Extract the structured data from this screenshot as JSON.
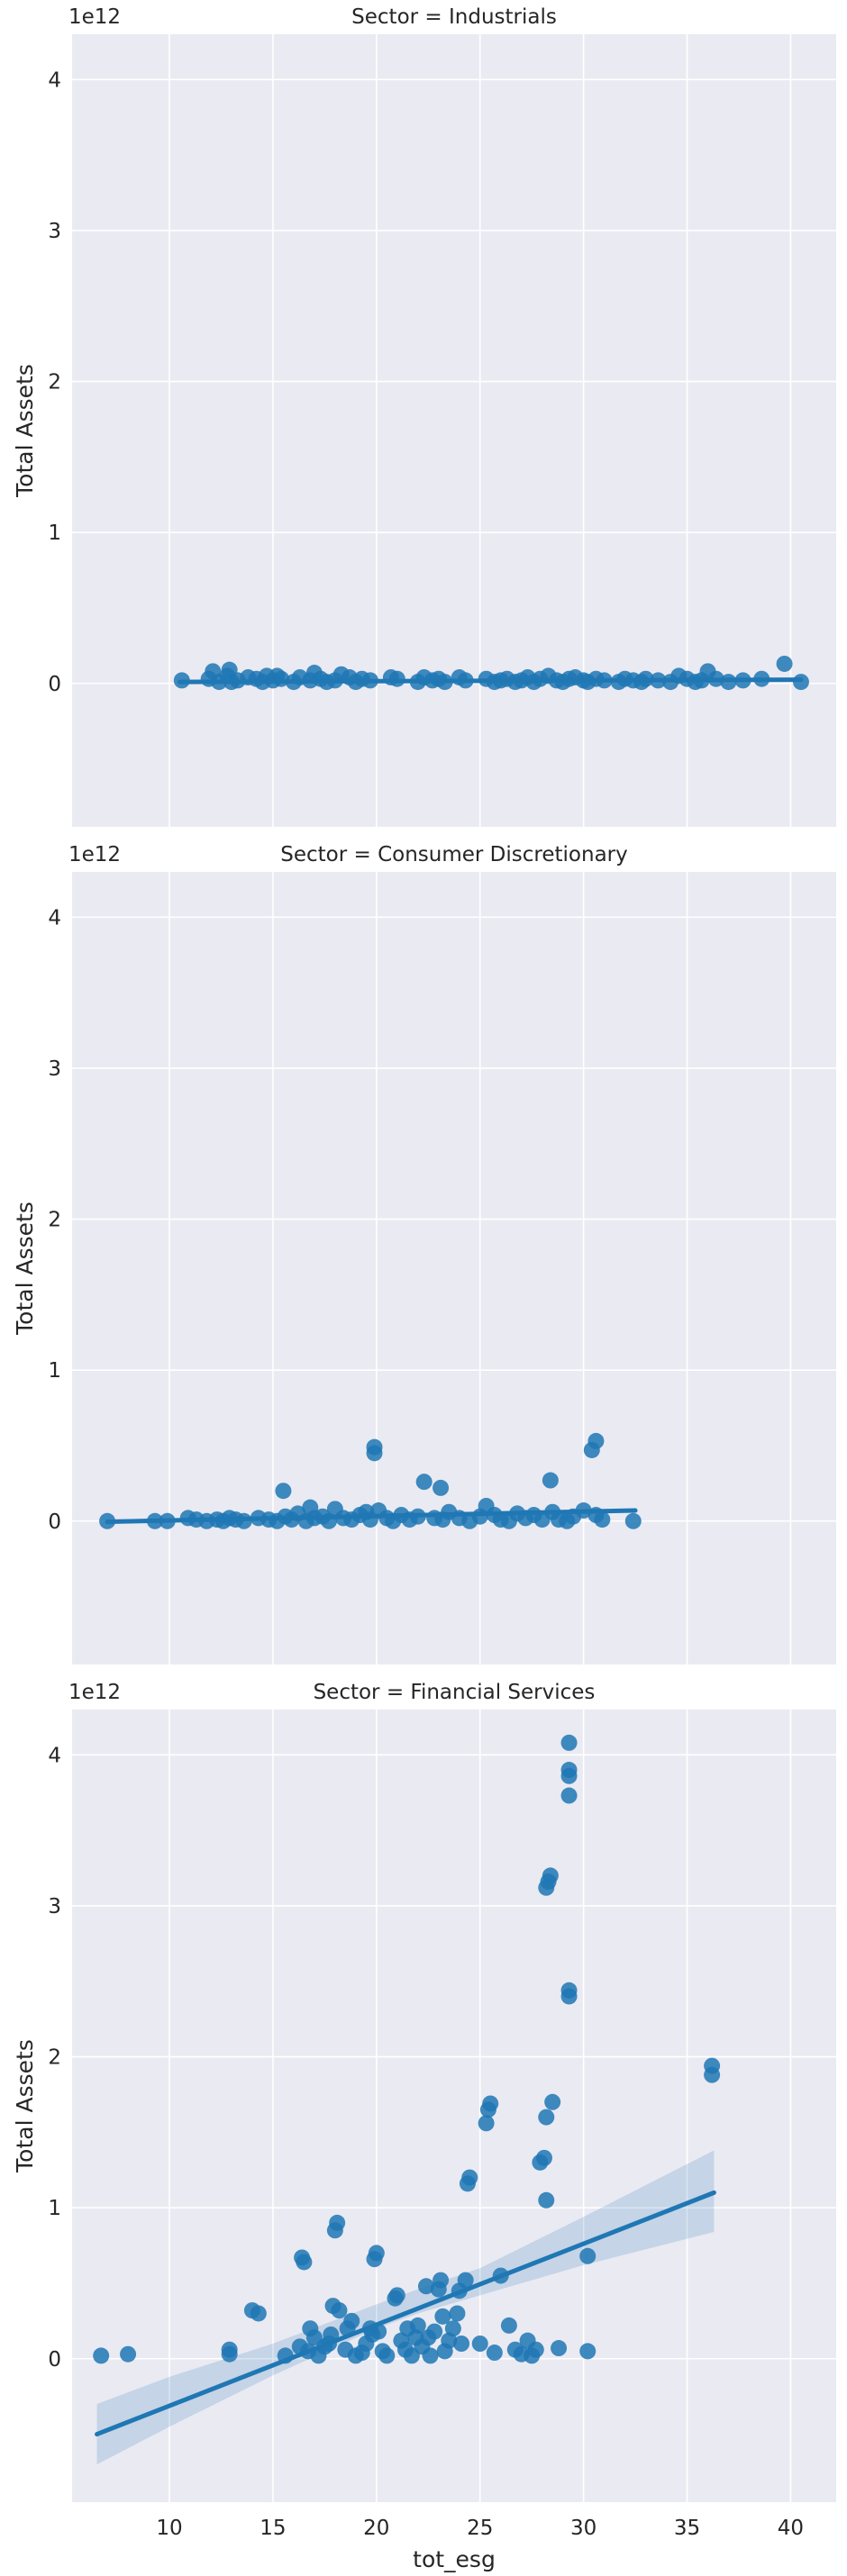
{
  "chart_data": [
    {
      "type": "scatter",
      "title": "Sector = Industrials",
      "xlabel": "",
      "ylabel": "Total Assets",
      "offset_label": "1e12",
      "xlim": [
        5.3,
        42.2
      ],
      "ylim": [
        -0.95,
        4.3
      ],
      "xticks": [
        10,
        15,
        20,
        25,
        30,
        35,
        40
      ],
      "yticks": [
        0,
        1,
        2,
        3,
        4
      ],
      "xtick_labels_shown": false,
      "grid": true,
      "fit_line": {
        "x": [
          10.5,
          40.5
        ],
        "y": [
          0.01,
          0.025
        ]
      },
      "confidence_band": null,
      "x": [
        10.6,
        11.9,
        12.1,
        12.4,
        12.8,
        12.9,
        13.0,
        13.3,
        13.8,
        14.2,
        14.5,
        14.7,
        15.0,
        15.2,
        15.4,
        16.0,
        16.3,
        16.8,
        17.0,
        17.3,
        17.6,
        18.0,
        18.3,
        18.7,
        19.0,
        19.3,
        19.7,
        20.7,
        21.0,
        22.0,
        22.3,
        22.7,
        23.0,
        23.3,
        24.0,
        24.3,
        25.3,
        25.7,
        26.0,
        26.3,
        26.7,
        27.0,
        27.3,
        27.6,
        27.9,
        28.3,
        28.7,
        29.0,
        29.3,
        29.6,
        30.0,
        30.2,
        30.6,
        31.0,
        31.7,
        32.0,
        32.4,
        32.8,
        33.0,
        33.6,
        34.2,
        34.6,
        35.0,
        35.4,
        35.7,
        36.0,
        36.4,
        37.0,
        37.7,
        38.6,
        39.7,
        40.5
      ],
      "y": [
        0.02,
        0.03,
        0.08,
        0.01,
        0.05,
        0.09,
        0.01,
        0.02,
        0.04,
        0.03,
        0.01,
        0.05,
        0.02,
        0.05,
        0.03,
        0.01,
        0.04,
        0.02,
        0.07,
        0.03,
        0.01,
        0.02,
        0.06,
        0.04,
        0.01,
        0.03,
        0.02,
        0.04,
        0.03,
        0.01,
        0.04,
        0.02,
        0.03,
        0.01,
        0.04,
        0.02,
        0.03,
        0.01,
        0.02,
        0.03,
        0.01,
        0.02,
        0.04,
        0.01,
        0.03,
        0.05,
        0.02,
        0.01,
        0.03,
        0.04,
        0.02,
        0.01,
        0.03,
        0.02,
        0.01,
        0.03,
        0.02,
        0.01,
        0.03,
        0.02,
        0.01,
        0.05,
        0.03,
        0.01,
        0.02,
        0.08,
        0.03,
        0.01,
        0.02,
        0.03,
        0.13,
        0.01
      ]
    },
    {
      "type": "scatter",
      "title": "Sector = Consumer Discretionary",
      "xlabel": "",
      "ylabel": "Total Assets",
      "offset_label": "1e12",
      "xlim": [
        5.3,
        42.2
      ],
      "ylim": [
        -0.95,
        4.3
      ],
      "xticks": [
        10,
        15,
        20,
        25,
        30,
        35,
        40
      ],
      "yticks": [
        0,
        1,
        2,
        3,
        4
      ],
      "xtick_labels_shown": false,
      "grid": true,
      "fit_line": {
        "x": [
          7.0,
          32.5
        ],
        "y": [
          -0.005,
          0.07
        ]
      },
      "confidence_band": null,
      "x": [
        7.0,
        9.3,
        9.9,
        10.9,
        11.3,
        11.8,
        12.3,
        12.6,
        12.9,
        13.2,
        13.6,
        14.3,
        14.8,
        15.2,
        15.5,
        15.6,
        15.9,
        16.2,
        16.6,
        16.8,
        17.0,
        17.4,
        17.7,
        18.0,
        18.4,
        18.8,
        19.2,
        19.5,
        19.9,
        19.9,
        19.7,
        20.1,
        20.5,
        20.8,
        21.2,
        21.6,
        22.0,
        22.3,
        22.8,
        23.1,
        23.2,
        23.5,
        24.0,
        24.5,
        25.0,
        25.3,
        25.7,
        26.0,
        26.4,
        26.8,
        27.2,
        27.6,
        28.0,
        28.4,
        28.5,
        28.8,
        29.2,
        29.5,
        30.0,
        30.4,
        30.6,
        30.6,
        30.9,
        32.4
      ],
      "y": [
        0.0,
        0.0,
        0.0,
        0.02,
        0.01,
        0.0,
        0.01,
        0.0,
        0.02,
        0.01,
        0.0,
        0.02,
        0.01,
        0.0,
        0.2,
        0.03,
        0.01,
        0.05,
        0.0,
        0.09,
        0.02,
        0.03,
        0.0,
        0.08,
        0.02,
        0.01,
        0.04,
        0.06,
        0.45,
        0.49,
        0.01,
        0.07,
        0.02,
        0.0,
        0.04,
        0.01,
        0.03,
        0.26,
        0.02,
        0.22,
        0.01,
        0.06,
        0.02,
        0.0,
        0.03,
        0.1,
        0.04,
        0.01,
        0.0,
        0.05,
        0.02,
        0.04,
        0.01,
        0.27,
        0.06,
        0.01,
        0.0,
        0.03,
        0.07,
        0.47,
        0.53,
        0.04,
        0.01,
        0.0
      ]
    },
    {
      "type": "scatter",
      "title": "Sector = Financial Services",
      "xlabel": "tot_esg",
      "ylabel": "Total Assets",
      "offset_label": "1e12",
      "xlim": [
        5.3,
        42.2
      ],
      "ylim": [
        -0.95,
        4.3
      ],
      "xticks": [
        10,
        15,
        20,
        25,
        30,
        35,
        40
      ],
      "yticks": [
        0,
        1,
        2,
        3,
        4
      ],
      "xtick_labels_shown": true,
      "grid": true,
      "fit_line": {
        "x": [
          6.5,
          36.3
        ],
        "y": [
          -0.5,
          1.1
        ]
      },
      "confidence_band": {
        "x": [
          6.5,
          10,
          15,
          20,
          22,
          25,
          30,
          36.3
        ],
        "lower": [
          -0.7,
          -0.45,
          -0.11,
          0.2,
          0.3,
          0.42,
          0.62,
          0.84
        ],
        "upper": [
          -0.3,
          -0.12,
          0.1,
          0.36,
          0.46,
          0.6,
          0.94,
          1.38
        ]
      },
      "x": [
        6.7,
        8.0,
        12.9,
        12.9,
        14.0,
        14.3,
        15.6,
        16.3,
        16.4,
        16.5,
        16.7,
        16.8,
        17.0,
        17.2,
        17.5,
        17.7,
        17.8,
        17.9,
        18.0,
        18.1,
        18.2,
        18.5,
        18.6,
        18.8,
        19.0,
        19.3,
        19.5,
        19.7,
        19.8,
        19.9,
        20.0,
        20.1,
        20.3,
        20.5,
        20.9,
        21.0,
        21.2,
        21.4,
        21.5,
        21.7,
        21.9,
        22.0,
        22.2,
        22.4,
        22.5,
        22.6,
        22.8,
        23.0,
        23.1,
        23.2,
        23.3,
        23.5,
        23.7,
        23.9,
        24.0,
        24.1,
        24.3,
        24.4,
        24.5,
        25.0,
        25.3,
        25.4,
        25.5,
        25.7,
        26.0,
        26.4,
        26.7,
        27.0,
        27.3,
        27.5,
        27.7,
        27.9,
        28.1,
        28.2,
        28.2,
        28.2,
        28.3,
        28.4,
        28.5,
        28.8,
        29.3,
        29.3,
        29.3,
        29.3,
        29.3,
        29.3,
        30.2,
        30.2,
        36.2,
        36.2
      ],
      "y": [
        0.02,
        0.03,
        0.03,
        0.06,
        0.32,
        0.3,
        0.02,
        0.08,
        0.67,
        0.64,
        0.05,
        0.2,
        0.14,
        0.02,
        0.08,
        0.1,
        0.16,
        0.35,
        0.85,
        0.9,
        0.32,
        0.06,
        0.2,
        0.25,
        0.02,
        0.04,
        0.1,
        0.2,
        0.16,
        0.66,
        0.7,
        0.18,
        0.05,
        0.02,
        0.4,
        0.42,
        0.12,
        0.06,
        0.2,
        0.02,
        0.14,
        0.22,
        0.08,
        0.48,
        0.14,
        0.02,
        0.18,
        0.46,
        0.52,
        0.28,
        0.05,
        0.12,
        0.2,
        0.3,
        0.45,
        0.1,
        0.52,
        1.16,
        1.2,
        0.1,
        1.56,
        1.65,
        1.69,
        0.04,
        0.55,
        0.22,
        0.06,
        0.03,
        0.12,
        0.02,
        0.06,
        1.3,
        1.33,
        1.05,
        1.6,
        3.12,
        3.16,
        3.2,
        1.7,
        0.07,
        4.08,
        3.9,
        3.86,
        3.73,
        2.44,
        2.4,
        0.05,
        0.68,
        1.88,
        1.94
      ]
    }
  ],
  "style": {
    "axes_bg": "#eaeaf2",
    "grid": "#ffffff",
    "point": "#1f77b4",
    "band": "#1f77b4"
  }
}
